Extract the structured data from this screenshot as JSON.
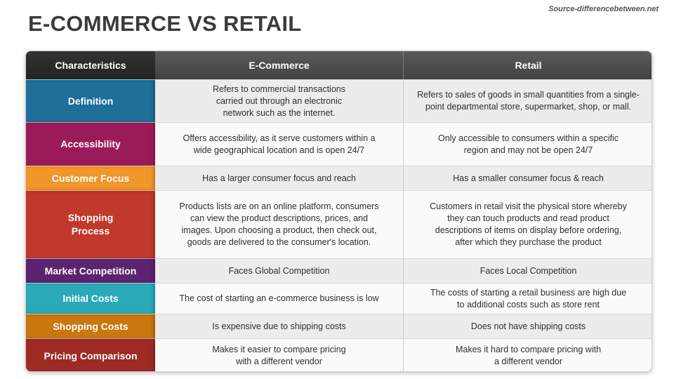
{
  "page": {
    "title": "E-COMMERCE VS RETAIL",
    "source": "Source-differencebetween.net"
  },
  "table": {
    "headers": [
      "Characteristics",
      "E-Commerce",
      "Retail"
    ],
    "rows": [
      {
        "label": "Definition",
        "color": "#1f6f9a",
        "ecommerce": "Refers to commercial transactions\ncarried out through an electronic\nnetwork such as the internet.",
        "retail": "Refers to sales of goods in small quantities from a single-\npoint departmental store, supermarket, shop, or mall."
      },
      {
        "label": "Accessibility",
        "color": "#9b1b5a",
        "ecommerce": "Offers accessibility, as it serve customers within a\nwide geographical location and is open 24/7",
        "retail": "Only accessible to consumers within a specific\nregion and may not be open 24/7"
      },
      {
        "label": "Customer Focus",
        "color": "#f0962a",
        "ecommerce": "Has a larger consumer focus and reach",
        "retail": "Has a smaller consumer focus & reach"
      },
      {
        "label": "Shopping\nProcess",
        "color": "#c0392b",
        "ecommerce": "Products lists are on an online platform, consumers\ncan view the product descriptions, prices, and\nimages. Upon choosing a product, then check out,\ngoods are delivered to the consumer's location.",
        "retail": "Customers in retail visit the physical store whereby\nthey can touch products and read product\ndescriptions of items on display before ordering,\nafter which they purchase the product"
      },
      {
        "label": "Market Competition",
        "color": "#5b2370",
        "ecommerce": "Faces Global Competition",
        "retail": "Faces Local Competition"
      },
      {
        "label": "Initial Costs",
        "color": "#2aa9b8",
        "ecommerce": "The cost of starting an e-commerce business is low",
        "retail": "The costs of starting a retail business are high due\nto additional costs such as store rent"
      },
      {
        "label": "Shopping Costs",
        "color": "#c9770f",
        "ecommerce": "Is expensive due to shipping costs",
        "retail": "Does not have shipping costs"
      },
      {
        "label": "Pricing Comparison",
        "color": "#9e2a24",
        "ecommerce": "Makes it easier to compare pricing\nwith a different vendor",
        "retail": "Makes it hard to compare pricing with\na different vendor"
      }
    ]
  }
}
